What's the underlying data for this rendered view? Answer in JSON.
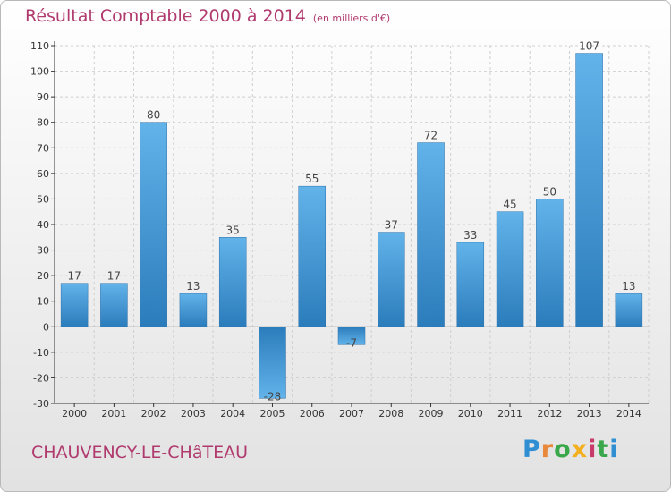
{
  "title": "Résultat Comptable 2000 à 2014",
  "unit": "(en milliers d'€)",
  "commune": "CHAUVENCY-LE-CHâTEAU",
  "logo": "Proxiti",
  "colors": {
    "title": "#b03a6e",
    "bar_light": "#5dade6",
    "bar_dark": "#2f7fbd"
  },
  "chart_data": {
    "type": "bar",
    "title": "Résultat Comptable 2000 à 2014",
    "ylabel": "en milliers d'€",
    "categories": [
      "2000",
      "2001",
      "2002",
      "2003",
      "2004",
      "2005",
      "2006",
      "2007",
      "2008",
      "2009",
      "2010",
      "2011",
      "2012",
      "2013",
      "2014"
    ],
    "values": [
      17,
      17,
      80,
      13,
      35,
      -28,
      55,
      -7,
      37,
      72,
      33,
      45,
      50,
      107,
      13
    ],
    "labels": [
      "17",
      "17",
      "80",
      "13",
      "35",
      "-28",
      "55",
      "-7",
      "37",
      "72",
      "33",
      "45",
      "50",
      "107",
      "13"
    ],
    "ylim": [
      -30,
      110
    ],
    "yticks": [
      -30,
      -20,
      -10,
      0,
      10,
      20,
      30,
      40,
      50,
      60,
      70,
      80,
      90,
      100,
      110
    ],
    "grid": true
  }
}
